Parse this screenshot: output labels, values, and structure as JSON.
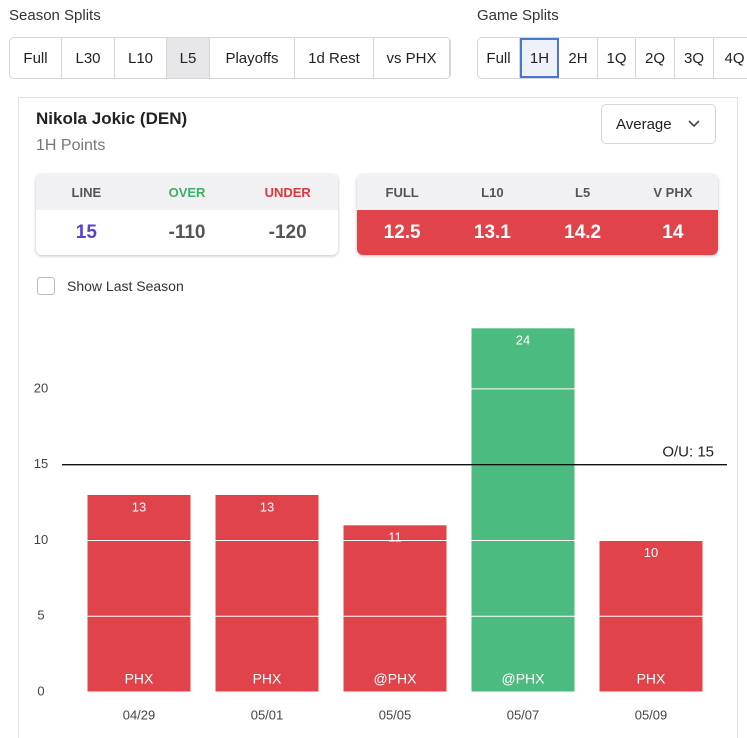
{
  "season_splits": {
    "title": "Season Splits",
    "options": [
      "Full",
      "L30",
      "L10",
      "L5",
      "Playoffs",
      "1d Rest",
      "vs PHX"
    ],
    "selected": 3
  },
  "game_splits": {
    "title": "Game Splits",
    "options": [
      "Full",
      "1H",
      "2H",
      "1Q",
      "2Q",
      "3Q",
      "4Q"
    ],
    "selected": 1
  },
  "player": {
    "name": "Nikola Jokic (DEN)",
    "stat": "1H Points"
  },
  "dropdown": "Average",
  "line_table": {
    "headers": [
      "LINE",
      "OVER",
      "UNDER"
    ],
    "values": [
      15,
      -110,
      -120
    ]
  },
  "averages": {
    "headers": [
      "FULL",
      "L10",
      "L5",
      "V PHX"
    ],
    "values": [
      12.5,
      13.1,
      14.2,
      14
    ]
  },
  "checkbox": "Show Last Season",
  "chart_data": {
    "type": "bar",
    "categories": [
      "04/29",
      "05/01",
      "05/05",
      "05/07",
      "05/09"
    ],
    "values": [
      13,
      13,
      11,
      24,
      10
    ],
    "opponents": [
      "PHX",
      "PHX",
      "@PHX",
      "@PHX",
      "PHX"
    ],
    "ylim": [
      0,
      26
    ],
    "yticks": [
      0,
      5,
      10,
      15,
      20
    ],
    "line": {
      "value": 15,
      "label": "O/U: 15"
    },
    "colors": {
      "over": "#4cbb7f",
      "under": "#e0434a"
    },
    "grid": true
  }
}
